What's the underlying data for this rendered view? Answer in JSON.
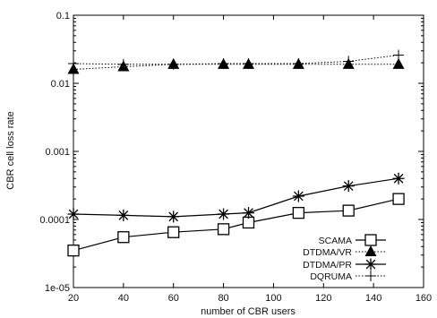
{
  "chart_data": {
    "type": "line",
    "xlabel": "number of CBR users",
    "ylabel": "CBR cell loss rate",
    "xlim": [
      20,
      160
    ],
    "ylim": [
      1e-05,
      0.1
    ],
    "yscale": "log",
    "grid": false,
    "legend_position": "bottom-right",
    "x_ticks": [
      20,
      40,
      60,
      80,
      100,
      120,
      140,
      160
    ],
    "x_tick_labels": [
      "20",
      "40",
      "60",
      "80",
      "100",
      "120",
      "140",
      "160"
    ],
    "y_ticks": [
      1e-05,
      0.0001,
      0.001,
      0.01,
      0.1
    ],
    "y_tick_labels": [
      "1e-05",
      "0.0001",
      "0.001",
      "0.01",
      "0.1"
    ],
    "series": [
      {
        "name": "SCAMA",
        "marker": "square",
        "line": "solid",
        "x": [
          20,
          40,
          60,
          80,
          90,
          110,
          130,
          150
        ],
        "y": [
          3.5e-05,
          5.5e-05,
          6.5e-05,
          7.2e-05,
          9e-05,
          0.000125,
          0.000135,
          0.0002
        ]
      },
      {
        "name": "DTDMA/VR",
        "marker": "triangle",
        "line": "dotted",
        "x": [
          20,
          40,
          60,
          80,
          90,
          110,
          130,
          150
        ],
        "y": [
          0.016,
          0.0175,
          0.019,
          0.019,
          0.019,
          0.019,
          0.019,
          0.019
        ]
      },
      {
        "name": "DTDMA/PR",
        "marker": "star",
        "line": "solid",
        "x": [
          20,
          40,
          60,
          80,
          90,
          110,
          130,
          150
        ],
        "y": [
          0.00012,
          0.000115,
          0.00011,
          0.00012,
          0.000125,
          0.00022,
          0.00031,
          0.0004
        ]
      },
      {
        "name": "DQRUMA",
        "marker": "plus",
        "line": "dotted",
        "x": [
          20,
          40,
          60,
          80,
          90,
          110,
          130,
          150
        ],
        "y": [
          0.0195,
          0.019,
          0.019,
          0.0195,
          0.0195,
          0.0195,
          0.021,
          0.026
        ]
      }
    ]
  }
}
